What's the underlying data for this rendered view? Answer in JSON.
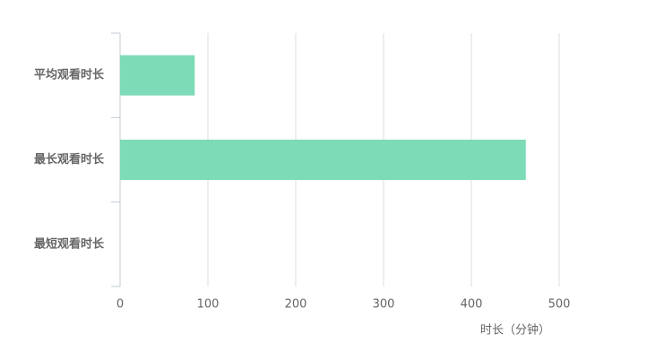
{
  "chart_data": {
    "type": "hbar",
    "categories": [
      "平均观看时长",
      "最长观看时长",
      "最短观看时长"
    ],
    "values": [
      85,
      462,
      0
    ],
    "color": "#7ddbb8",
    "xlabel": "时长（分钟）",
    "xlim": [
      0,
      500
    ],
    "xticks": [
      0,
      100,
      200,
      300,
      400,
      500
    ],
    "grid": true
  }
}
